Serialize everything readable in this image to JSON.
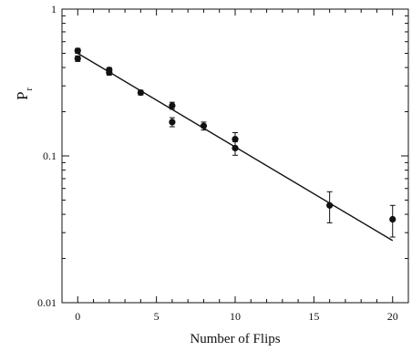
{
  "chart_data": {
    "type": "scatter",
    "title": "",
    "xlabel": "Number of Flips",
    "ylabel": {
      "main": "P",
      "sub": "r"
    },
    "xlim": [
      -1,
      21
    ],
    "ylim": [
      0.01,
      1
    ],
    "y_scale": "log",
    "x_ticks": [
      0,
      5,
      10,
      15,
      20
    ],
    "x_tick_labels": [
      "0",
      "5",
      "10",
      "15",
      "20"
    ],
    "y_ticks": [
      0.01,
      0.1,
      1
    ],
    "y_tick_labels": [
      "0.01",
      "0.1",
      "1"
    ],
    "grid": false,
    "legend": "none",
    "marker_color": "#111111",
    "line_color": "#111111",
    "points": [
      {
        "x": 0,
        "y": 0.52,
        "err": 0.02
      },
      {
        "x": 0,
        "y": 0.46,
        "err": 0.02
      },
      {
        "x": 2,
        "y": 0.385,
        "err": 0.015
      },
      {
        "x": 2,
        "y": 0.37,
        "err": 0.015
      },
      {
        "x": 4,
        "y": 0.27,
        "err": 0.01
      },
      {
        "x": 6,
        "y": 0.22,
        "err": 0.012
      },
      {
        "x": 6,
        "y": 0.17,
        "err": 0.012
      },
      {
        "x": 8,
        "y": 0.16,
        "err": 0.01
      },
      {
        "x": 10,
        "y": 0.13,
        "err": 0.014
      },
      {
        "x": 10,
        "y": 0.113,
        "err": 0.012
      },
      {
        "x": 16,
        "y": 0.046,
        "err": 0.011
      },
      {
        "x": 20,
        "y": 0.037,
        "err": 0.009
      }
    ],
    "fit_line": {
      "x": [
        0,
        20
      ],
      "y": [
        0.5,
        0.0265
      ]
    }
  }
}
